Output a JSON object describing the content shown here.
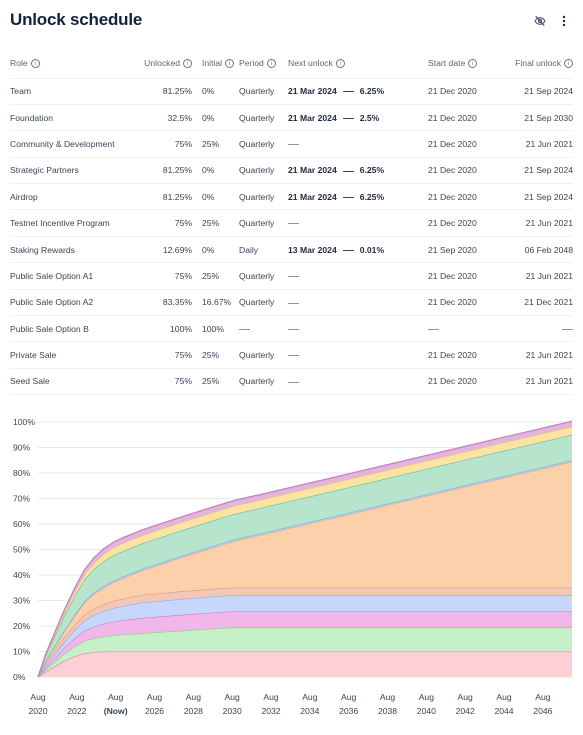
{
  "header": {
    "title": "Unlock schedule",
    "icon_filter": "eye-off-icon",
    "icon_menu": "vertical-dots-icon"
  },
  "table": {
    "columns": [
      "Role",
      "Unlocked",
      "Initial",
      "Period",
      "Next unlock",
      "Start date",
      "Final unlock"
    ],
    "rows": [
      {
        "role": "Team",
        "unlocked": "81.25%",
        "initial": "0%",
        "period": "Quarterly",
        "next_date": "21 Mar 2024",
        "next_pct": "6.25%",
        "start": "21 Dec 2020",
        "final": "21 Sep 2024"
      },
      {
        "role": "Foundation",
        "unlocked": "32.5%",
        "initial": "0%",
        "period": "Quarterly",
        "next_date": "21 Mar 2024",
        "next_pct": "2.5%",
        "start": "21 Dec 2020",
        "final": "21 Sep 2030"
      },
      {
        "role": "Community & Development",
        "unlocked": "75%",
        "initial": "25%",
        "period": "Quarterly",
        "next_date": "",
        "next_pct": "",
        "start": "21 Dec 2020",
        "final": "21 Jun 2021"
      },
      {
        "role": "Strategic Partners",
        "unlocked": "81.25%",
        "initial": "0%",
        "period": "Quarterly",
        "next_date": "21 Mar 2024",
        "next_pct": "6.25%",
        "start": "21 Dec 2020",
        "final": "21 Sep 2024"
      },
      {
        "role": "Airdrop",
        "unlocked": "81.25%",
        "initial": "0%",
        "period": "Quarterly",
        "next_date": "21 Mar 2024",
        "next_pct": "6.25%",
        "start": "21 Dec 2020",
        "final": "21 Sep 2024"
      },
      {
        "role": "Testnet Incentive Program",
        "unlocked": "75%",
        "initial": "25%",
        "period": "Quarterly",
        "next_date": "",
        "next_pct": "",
        "start": "21 Dec 2020",
        "final": "21 Jun 2021"
      },
      {
        "role": "Staking Rewards",
        "unlocked": "12.69%",
        "initial": "0%",
        "period": "Daily",
        "next_date": "13 Mar 2024",
        "next_pct": "0.01%",
        "start": "21 Sep 2020",
        "final": "06 Feb 2048"
      },
      {
        "role": "Public Sale Option A1",
        "unlocked": "75%",
        "initial": "25%",
        "period": "Quarterly",
        "next_date": "",
        "next_pct": "",
        "start": "21 Dec 2020",
        "final": "21 Jun 2021"
      },
      {
        "role": "Public Sale Option A2",
        "unlocked": "83.35%",
        "initial": "16.67%",
        "period": "Quarterly",
        "next_date": "",
        "next_pct": "",
        "start": "21 Dec 2020",
        "final": "21 Dec 2021"
      },
      {
        "role": "Public Sale Option B",
        "unlocked": "100%",
        "initial": "100%",
        "period": "",
        "next_date": "",
        "next_pct": "",
        "start": "",
        "final": ""
      },
      {
        "role": "Private Sale",
        "unlocked": "75%",
        "initial": "25%",
        "period": "Quarterly",
        "next_date": "",
        "next_pct": "",
        "start": "21 Dec 2020",
        "final": "21 Jun 2021"
      },
      {
        "role": "Seed Sale",
        "unlocked": "75%",
        "initial": "25%",
        "period": "Quarterly",
        "next_date": "",
        "next_pct": "",
        "start": "21 Dec 2020",
        "final": "21 Jun 2021"
      }
    ]
  },
  "chart_data": {
    "type": "area",
    "stacked": true,
    "x_label_top": [
      "Aug",
      "Aug",
      "Aug",
      "Aug",
      "Aug",
      "Aug",
      "Aug",
      "Aug",
      "Aug",
      "Aug",
      "Aug",
      "Aug",
      "Aug",
      "Aug"
    ],
    "x_label_bottom": [
      "2020",
      "2022",
      "(Now)",
      "2026",
      "2028",
      "2030",
      "2032",
      "2034",
      "2036",
      "2038",
      "2040",
      "2042",
      "2044",
      "2046"
    ],
    "x_ticks": [
      2020.6,
      2022.6,
      2024.6,
      2026.6,
      2028.6,
      2030.6,
      2032.6,
      2034.6,
      2036.6,
      2038.6,
      2040.6,
      2042.6,
      2044.6,
      2046.6
    ],
    "xlim": [
      2020.6,
      2048.1
    ],
    "y_ticks": [
      "0%",
      "10%",
      "20%",
      "30%",
      "40%",
      "50%",
      "60%",
      "70%",
      "80%",
      "90%",
      "100%"
    ],
    "ylim": [
      0,
      100
    ],
    "x": [
      2020.6,
      2021.0,
      2021.5,
      2022.0,
      2022.5,
      2023.0,
      2023.5,
      2024.0,
      2024.5,
      2025.0,
      2026.0,
      2028.0,
      2030.0,
      2030.7,
      2032.0,
      2036.0,
      2040.0,
      2044.0,
      2048.1
    ],
    "series": [
      {
        "color": "#fcd0d4",
        "values": [
          0,
          2.0,
          4.4,
          6.5,
          8.2,
          9.3,
          9.8,
          10.0,
          10.0,
          10.0,
          10.0,
          10.0,
          10.0,
          10.0,
          10.0,
          10.0,
          10.0,
          10.0,
          10.0
        ]
      },
      {
        "color": "#c5f0c8",
        "values": [
          0,
          0.9,
          1.9,
          2.9,
          3.9,
          4.9,
          5.4,
          5.9,
          6.3,
          6.7,
          7.2,
          8.2,
          9.2,
          9.5,
          9.5,
          9.5,
          9.5,
          9.5,
          9.5
        ]
      },
      {
        "color": "#f2b7ea",
        "values": [
          0,
          0.8,
          1.6,
          2.4,
          3.2,
          4.0,
          4.6,
          5.0,
          5.4,
          5.6,
          6.0,
          6.2,
          6.3,
          6.3,
          6.3,
          6.3,
          6.3,
          6.3,
          6.3
        ]
      },
      {
        "color": "#c7d7fb",
        "values": [
          0,
          0.8,
          1.6,
          2.4,
          3.2,
          4.0,
          4.6,
          5.0,
          5.4,
          5.6,
          6.0,
          6.2,
          6.3,
          6.3,
          6.3,
          6.3,
          6.3,
          6.3,
          6.3
        ]
      },
      {
        "color": "#f3c7b6",
        "values": [
          0,
          1.2,
          1.6,
          1.9,
          2.1,
          2.3,
          2.5,
          2.7,
          2.8,
          2.9,
          3.0,
          3.0,
          3.0,
          3.0,
          3.0,
          3.0,
          3.0,
          3.0,
          3.0
        ]
      },
      {
        "color": "#fbd0ab",
        "values": [
          0,
          0.6,
          1.4,
          2.4,
          3.4,
          4.8,
          5.8,
          6.5,
          7.3,
          8.0,
          9.7,
          13.3,
          16.9,
          18.2,
          20.5,
          27.6,
          34.8,
          42.0,
          49.3
        ]
      },
      {
        "color": "#b9d8fb",
        "values": [
          0,
          0.1,
          0.2,
          0.3,
          0.4,
          0.5,
          0.5,
          0.6,
          0.6,
          0.6,
          0.6,
          0.6,
          0.6,
          0.6,
          0.6,
          0.6,
          0.6,
          0.6,
          0.6
        ]
      },
      {
        "color": "#b6e4cc",
        "values": [
          0,
          2.0,
          4.0,
          6.0,
          7.5,
          8.5,
          9.3,
          9.8,
          10.0,
          10.0,
          10.0,
          10.0,
          10.0,
          10.0,
          10.0,
          10.0,
          10.0,
          10.0,
          10.0
        ]
      },
      {
        "color": "#fbe3a4",
        "values": [
          0,
          0.4,
          0.8,
          1.2,
          1.6,
          2.0,
          2.4,
          2.8,
          3.0,
          3.2,
          3.2,
          3.2,
          3.2,
          3.2,
          3.2,
          3.2,
          3.2,
          3.2,
          3.2
        ]
      },
      {
        "color": "#e2b5de",
        "values": [
          0,
          0.3,
          0.7,
          1.1,
          1.5,
          1.8,
          2.0,
          2.1,
          2.1,
          2.1,
          2.1,
          2.1,
          2.1,
          2.1,
          2.1,
          2.1,
          2.1,
          2.1,
          2.1
        ]
      }
    ],
    "edge_colors": [
      "#e88a9a",
      "#7fd488",
      "#de7ed1",
      "#8eadf2",
      "#dba08a",
      "#e9a770",
      "#7da8e8",
      "#5fc49a",
      "#f1c65c",
      "#c77fc0"
    ]
  }
}
